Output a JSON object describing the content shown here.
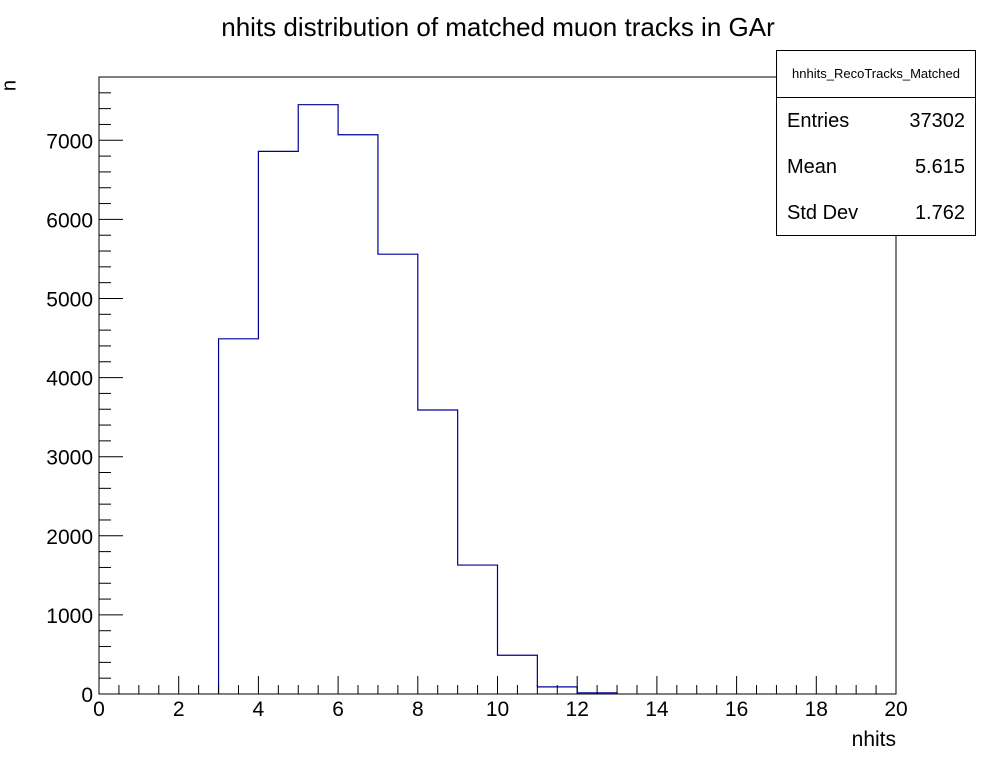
{
  "chart_data": {
    "type": "bar",
    "title": "nhits distribution of matched muon tracks in GAr",
    "xlabel": "nhits",
    "ylabel": "n",
    "xlim": [
      0,
      20
    ],
    "ylim": [
      0,
      7800
    ],
    "xticks": [
      0,
      2,
      4,
      6,
      8,
      10,
      12,
      14,
      16,
      18,
      20
    ],
    "yticks": [
      0,
      1000,
      2000,
      3000,
      4000,
      5000,
      6000,
      7000
    ],
    "bin_edges": [
      3,
      4,
      5,
      6,
      7,
      8,
      9,
      10,
      11,
      12,
      13
    ],
    "values": [
      4490,
      6860,
      7450,
      7070,
      5560,
      3590,
      1630,
      490,
      90,
      15
    ],
    "line_color": "#000099",
    "grid": false
  },
  "stats_box": {
    "name": "hnhits_RecoTracks_Matched",
    "rows": [
      {
        "label": "Entries",
        "value": "37302"
      },
      {
        "label": "Mean",
        "value": "5.615"
      },
      {
        "label": "Std Dev",
        "value": "1.762"
      }
    ]
  }
}
